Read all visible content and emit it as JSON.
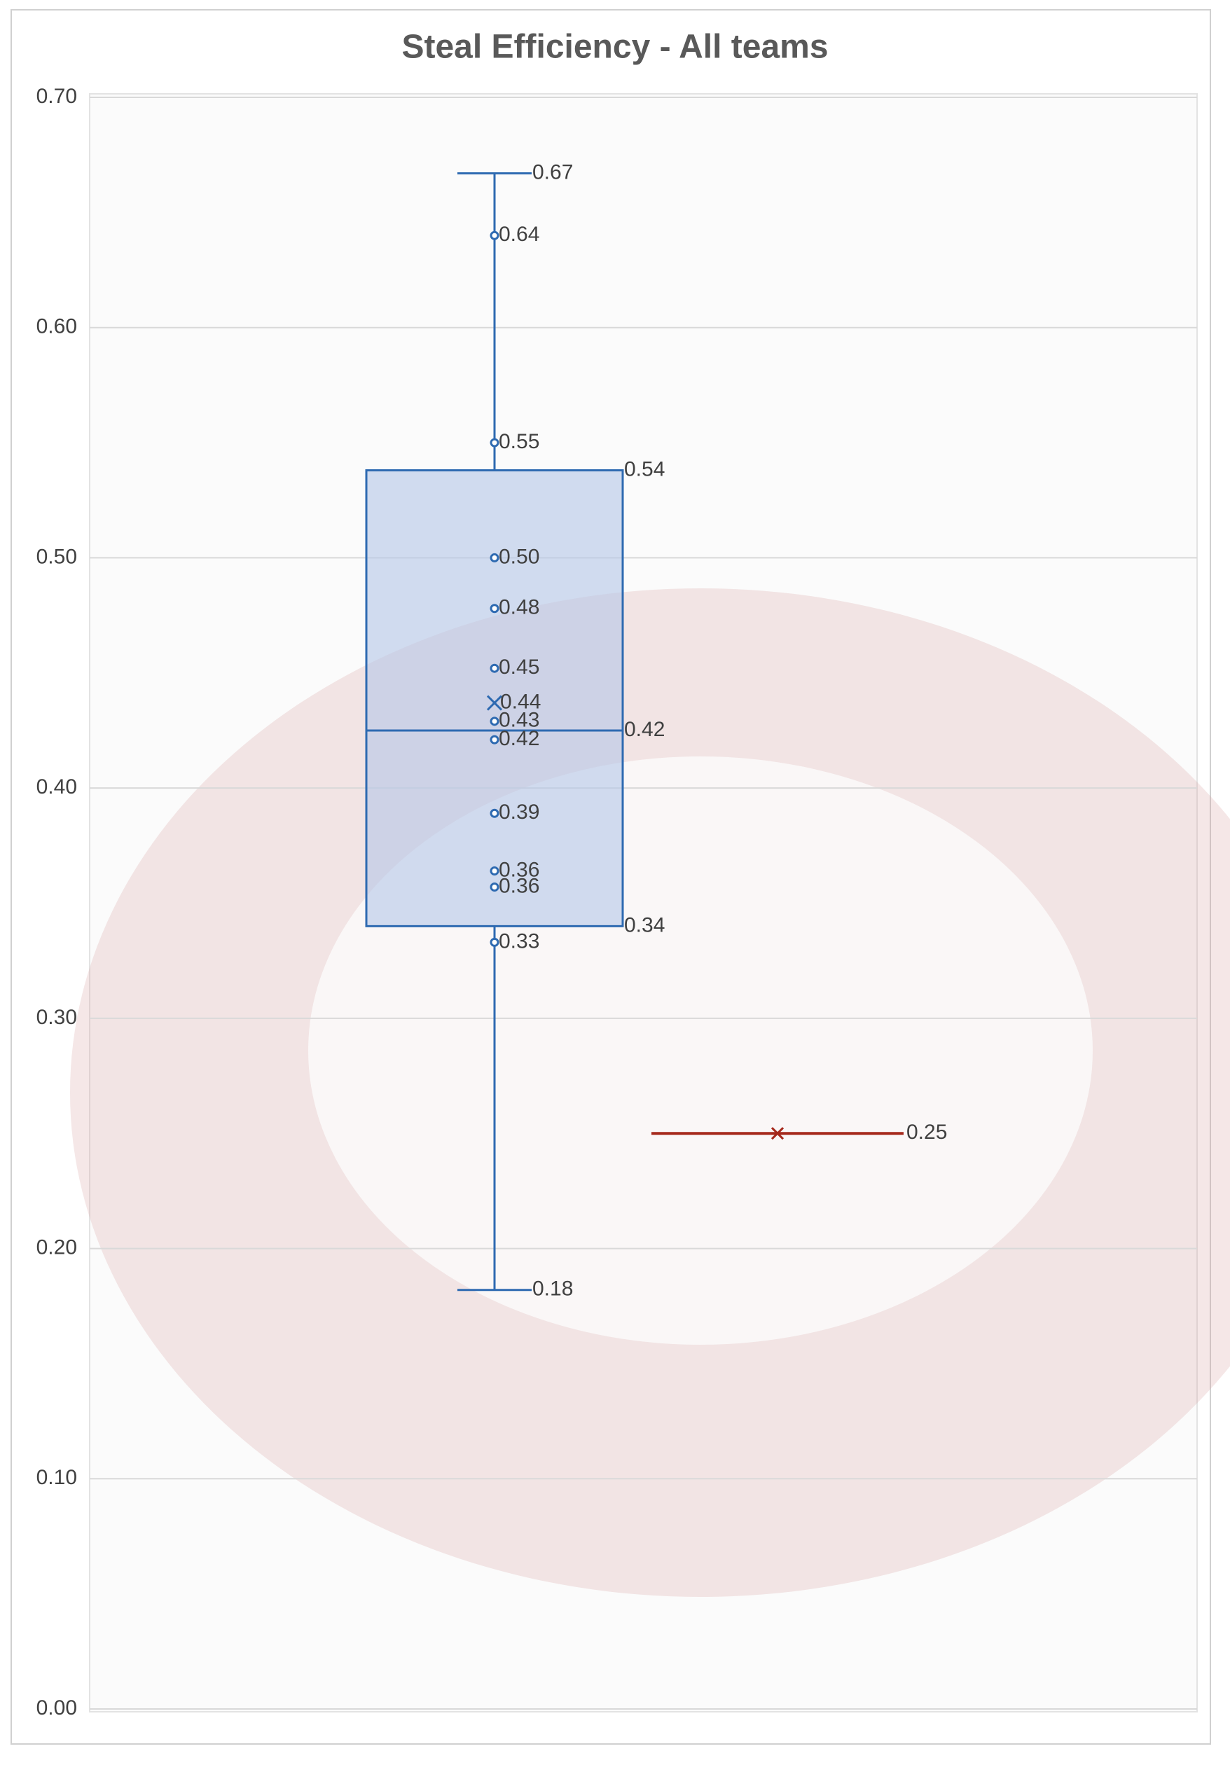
{
  "chart_data": {
    "type": "box",
    "title": "Steal Efficiency - All teams",
    "ylim": [
      0,
      0.7
    ],
    "yticks": [
      {
        "value": 0,
        "label": "0.00"
      },
      {
        "value": 0.1,
        "label": "0.10"
      },
      {
        "value": 0.2,
        "label": "0.20"
      },
      {
        "value": 0.3,
        "label": "0.30"
      },
      {
        "value": 0.4,
        "label": "0.40"
      },
      {
        "value": 0.5,
        "label": "0.50"
      },
      {
        "value": 0.6,
        "label": "0.60"
      },
      {
        "value": 0.7,
        "label": "0.70"
      }
    ],
    "grid": true,
    "series": [
      {
        "color": "#2e6ab1",
        "stats": {
          "min": 0.182,
          "q1": 0.34,
          "median": 0.425,
          "q3": 0.538,
          "max": 0.667,
          "mean": 0.437
        },
        "stat_labels": {
          "min": "0.18",
          "q1": "0.34",
          "median": "0.42",
          "q3": "0.54",
          "max": "0.67",
          "mean": "0.44"
        },
        "points": [
          0.64,
          0.55,
          0.5,
          0.478,
          0.452,
          0.429,
          0.421,
          0.389,
          0.364,
          0.357,
          0.333
        ],
        "point_labels": [
          "0.64",
          "0.55",
          "0.50",
          "0.48",
          "0.45",
          "0.43",
          "0.42",
          "0.39",
          "0.36",
          "0.36",
          "0.33"
        ]
      },
      {
        "color": "#a5281b",
        "stats": {
          "mean": 0.25
        },
        "stat_labels": {
          "mean": "0.25"
        }
      }
    ]
  }
}
